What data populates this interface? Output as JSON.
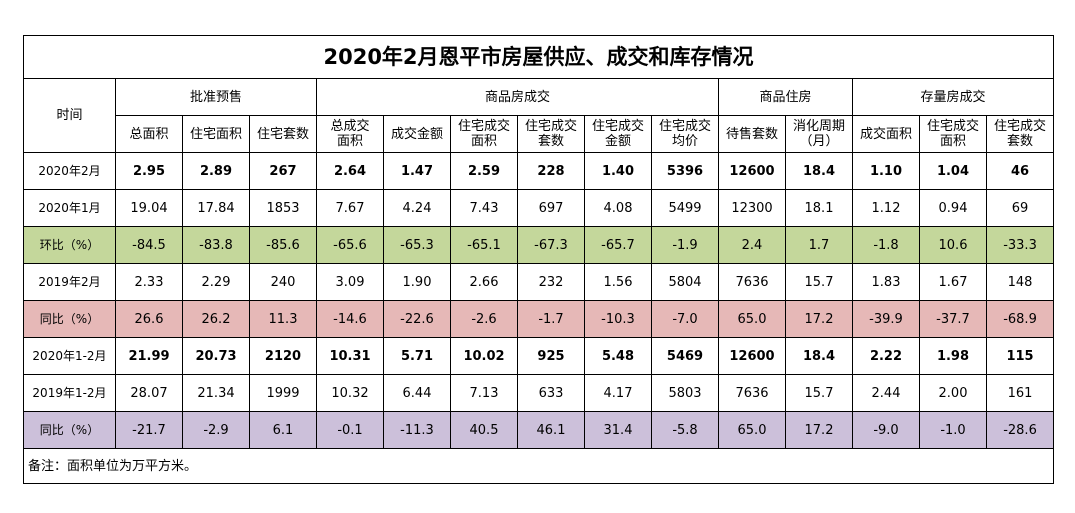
{
  "title": "2020年2月恩平市房屋供应、成交和库存情况",
  "header": {
    "time_label": "时间",
    "groups": [
      "批准预售",
      "商品房成交",
      "商品住房",
      "存量房成交"
    ],
    "columns": [
      "总面积",
      "住宅面积",
      "住宅套数",
      "总成交\n面积",
      "成交金额",
      "住宅成交\n面积",
      "住宅成交\n套数",
      "住宅成交\n金额",
      "住宅成交\n均价",
      "待售套数",
      "消化周期\n（月）",
      "成交面积",
      "住宅成交\n面积",
      "住宅成交\n套数"
    ]
  },
  "rows": [
    {
      "label": "2020年2月",
      "style": "bold",
      "values": [
        "2.95",
        "2.89",
        "267",
        "2.64",
        "1.47",
        "2.59",
        "228",
        "1.40",
        "5396",
        "12600",
        "18.4",
        "1.10",
        "1.04",
        "46"
      ]
    },
    {
      "label": "2020年1月",
      "style": "",
      "values": [
        "19.04",
        "17.84",
        "1853",
        "7.67",
        "4.24",
        "7.43",
        "697",
        "4.08",
        "5499",
        "12300",
        "18.1",
        "1.12",
        "0.94",
        "69"
      ]
    },
    {
      "label": "环比（%）",
      "style": "green",
      "values": [
        "-84.5",
        "-83.8",
        "-85.6",
        "-65.6",
        "-65.3",
        "-65.1",
        "-67.3",
        "-65.7",
        "-1.9",
        "2.4",
        "1.7",
        "-1.8",
        "10.6",
        "-33.3"
      ]
    },
    {
      "label": "2019年2月",
      "style": "",
      "values": [
        "2.33",
        "2.29",
        "240",
        "3.09",
        "1.90",
        "2.66",
        "232",
        "1.56",
        "5804",
        "7636",
        "15.7",
        "1.83",
        "1.67",
        "148"
      ]
    },
    {
      "label": "同比（%）",
      "style": "pink",
      "values": [
        "26.6",
        "26.2",
        "11.3",
        "-14.6",
        "-22.6",
        "-2.6",
        "-1.7",
        "-10.3",
        "-7.0",
        "65.0",
        "17.2",
        "-39.9",
        "-37.7",
        "-68.9"
      ]
    },
    {
      "label": "2020年1-2月",
      "style": "bold",
      "values": [
        "21.99",
        "20.73",
        "2120",
        "10.31",
        "5.71",
        "10.02",
        "925",
        "5.48",
        "5469",
        "12600",
        "18.4",
        "2.22",
        "1.98",
        "115"
      ]
    },
    {
      "label": "2019年1-2月",
      "style": "",
      "values": [
        "28.07",
        "21.34",
        "1999",
        "10.32",
        "6.44",
        "7.13",
        "633",
        "4.17",
        "5803",
        "7636",
        "15.7",
        "2.44",
        "2.00",
        "161"
      ]
    },
    {
      "label": "同比（%）",
      "style": "purple",
      "values": [
        "-21.7",
        "-2.9",
        "6.1",
        "-0.1",
        "-11.3",
        "40.5",
        "46.1",
        "31.4",
        "-5.8",
        "65.0",
        "17.2",
        "-9.0",
        "-1.0",
        "-28.6"
      ]
    }
  ],
  "note": "备注：面积单位为万平方米。"
}
